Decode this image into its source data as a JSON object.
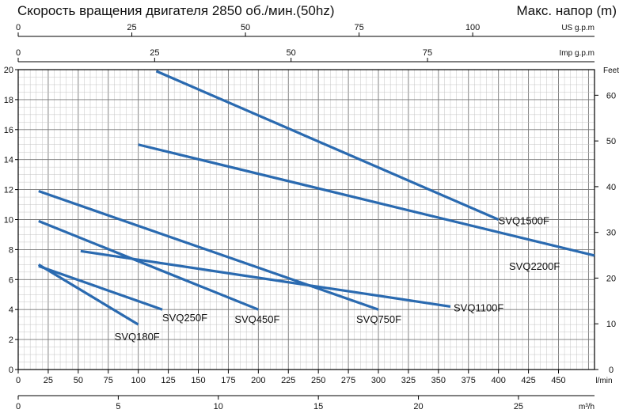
{
  "chart_data": {
    "type": "line",
    "title_left": "Скорость вращения двигателя  2850 об./мин.(50hz)",
    "title_right": "Макс. напор (m)",
    "x_primary": {
      "unit": "l/min",
      "range": [
        0,
        480
      ],
      "ticks": [
        0,
        25,
        50,
        75,
        100,
        125,
        150,
        175,
        200,
        225,
        250,
        275,
        300,
        325,
        350,
        375,
        400,
        425,
        450
      ]
    },
    "x_m3h": {
      "unit": "m³/h",
      "range": [
        0,
        28.8
      ],
      "ticks": [
        0,
        5,
        10,
        15,
        20,
        25
      ]
    },
    "x_us": {
      "unit": "US g.p.m",
      "range": [
        0,
        126.8
      ],
      "ticks": [
        0,
        25,
        50,
        75,
        100
      ]
    },
    "x_imp": {
      "unit": "Imp g.p.m",
      "range": [
        0,
        105.6
      ],
      "ticks": [
        0,
        25,
        50,
        75
      ]
    },
    "y_left": {
      "unit": "m",
      "range": [
        0,
        20
      ],
      "ticks": [
        0,
        2,
        4,
        6,
        8,
        10,
        12,
        14,
        16,
        18,
        20
      ]
    },
    "y_right": {
      "unit": "Feet",
      "range": [
        0,
        65.6
      ],
      "ticks": [
        0,
        10,
        20,
        30,
        40,
        50,
        60
      ]
    },
    "grid": true,
    "line_color": "#2a6ab0",
    "series": [
      {
        "name": "SVQ180F",
        "x": [
          17,
          100
        ],
        "y": [
          7.0,
          3.0
        ]
      },
      {
        "name": "SVQ250F",
        "x": [
          17,
          120
        ],
        "y": [
          6.9,
          4.0
        ]
      },
      {
        "name": "SVQ450F",
        "x": [
          17,
          200
        ],
        "y": [
          9.9,
          4.0
        ]
      },
      {
        "name": "SVQ750F",
        "x": [
          17,
          300
        ],
        "y": [
          11.9,
          4.0
        ]
      },
      {
        "name": "SVQ1100F",
        "x": [
          52,
          360
        ],
        "y": [
          7.9,
          4.2
        ]
      },
      {
        "name": "SVQ1500F",
        "x": [
          115,
          400
        ],
        "y": [
          19.9,
          10.0
        ]
      },
      {
        "name": "SVQ2200F",
        "x": [
          100,
          480
        ],
        "y": [
          15.0,
          7.6
        ]
      }
    ]
  }
}
